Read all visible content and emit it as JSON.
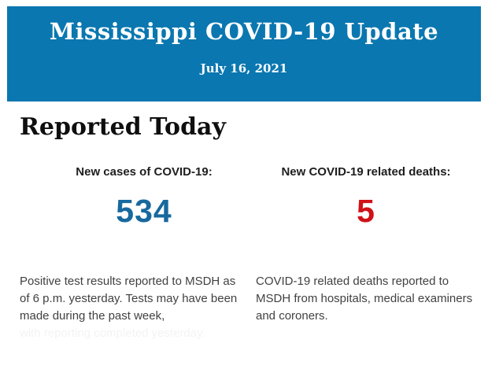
{
  "colors": {
    "header_background": "#0a77b0",
    "header_text": "#ffffff",
    "cases_value": "#17699e",
    "deaths_value": "#d01217",
    "heading_text": "#0f0f0f",
    "body_text": "#414141"
  },
  "header": {
    "title": "Mississippi COVID-19 Update",
    "date": "July 16, 2021"
  },
  "main": {
    "heading": "Reported Today",
    "stats": [
      {
        "label": "New cases of COVID-19:",
        "value": "534",
        "value_color": "#17699e",
        "description": "Positive test results reported to MSDH as of 6 p.m. yesterday. Tests may have been made during the past week,",
        "faded_continuation": "with reporting completed yesterday."
      },
      {
        "label": "New COVID-19 related deaths:",
        "value": "5",
        "value_color": "#d01217",
        "description": "COVID-19 related deaths reported to MSDH from hospitals, medical examiners and coroners."
      }
    ]
  }
}
